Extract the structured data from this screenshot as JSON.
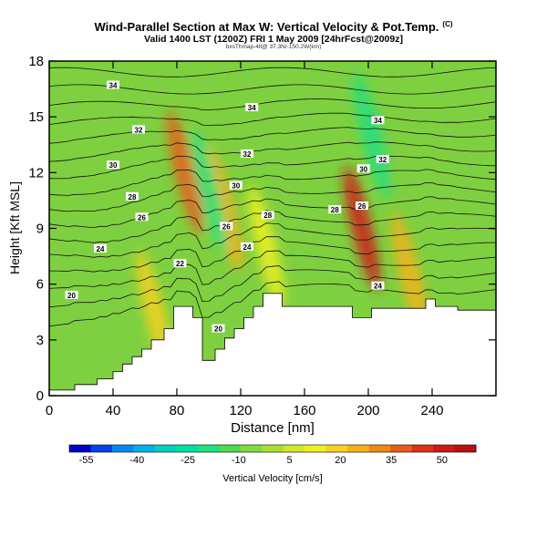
{
  "title": "Wind-Parallel Section at Max W: Vertical Velocity & Pot.Temp.",
  "title_suffix": "(C)",
  "subtitle": "Valid 1400 LST (1200Z) FRI 1 May 2009 [24hrFcst@2009z]",
  "credit": "bxsThmap-4lt@ 37.3N/-150.2W(km)",
  "chart_data": {
    "type": "heatmap",
    "xlabel": "Distance [nm]",
    "ylabel": "Height [Kft MSL]",
    "xlim": [
      0,
      280
    ],
    "ylim": [
      0,
      18
    ],
    "x_ticks": [
      "0",
      "40",
      "80",
      "120",
      "160",
      "200",
      "240"
    ],
    "y_ticks": [
      "0",
      "3",
      "6",
      "9",
      "12",
      "15",
      "18"
    ],
    "colorbar": {
      "label": "Vertical Velocity [cm/s]",
      "tick_labels": [
        "-55",
        "-40",
        "-25",
        "-10",
        "5",
        "20",
        "35",
        "50"
      ],
      "range": [
        -60,
        60
      ],
      "colors": [
        "#0000c8",
        "#0044e8",
        "#0088f0",
        "#00b0e8",
        "#00d0c0",
        "#00e0a0",
        "#20e080",
        "#50d850",
        "#80dc40",
        "#a8e030",
        "#d0e828",
        "#f0f020",
        "#f8d020",
        "#f8b018",
        "#f08818",
        "#e85c18",
        "#e03018",
        "#d01818",
        "#b81010"
      ]
    },
    "terrain_profile": {
      "x": [
        0,
        16,
        16,
        30,
        30,
        40,
        40,
        46,
        46,
        52,
        52,
        58,
        58,
        64,
        64,
        72,
        72,
        78,
        78,
        90,
        90,
        96,
        96,
        104,
        104,
        110,
        110,
        116,
        116,
        122,
        122,
        128,
        128,
        134,
        134,
        146,
        146,
        190,
        190,
        202,
        202,
        236,
        236,
        242,
        242,
        256,
        256,
        268,
        268,
        280
      ],
      "height": [
        0.3,
        0.3,
        0.6,
        0.6,
        0.9,
        0.9,
        1.3,
        1.3,
        1.7,
        1.7,
        2.1,
        2.1,
        2.5,
        2.5,
        3.0,
        3.0,
        3.6,
        3.6,
        4.8,
        4.8,
        4.2,
        4.2,
        1.9,
        1.9,
        2.5,
        2.5,
        3.1,
        3.1,
        3.6,
        3.6,
        4.2,
        4.2,
        4.8,
        4.8,
        5.5,
        5.5,
        4.8,
        4.8,
        4.2,
        4.2,
        4.7,
        4.7,
        5.2,
        5.2,
        4.8,
        4.8,
        4.6,
        4.6,
        4.6,
        4.6
      ]
    },
    "vertical_velocity_features": [
      {
        "kind": "updraft",
        "x": 85,
        "y": 12,
        "value": 35
      },
      {
        "kind": "updraft",
        "x": 110,
        "y": 10,
        "value": 25
      },
      {
        "kind": "downdraft",
        "x": 100,
        "y": 11,
        "value": -20
      },
      {
        "kind": "updraft",
        "x": 196,
        "y": 9,
        "value": 50
      },
      {
        "kind": "downdraft",
        "x": 202,
        "y": 14,
        "value": -20
      },
      {
        "kind": "updraft",
        "x": 226,
        "y": 6.5,
        "value": 25
      },
      {
        "kind": "updraft",
        "x": 66,
        "y": 4.5,
        "value": 20
      },
      {
        "kind": "updraft",
        "x": 136,
        "y": 8,
        "value": 15
      }
    ],
    "isentrope_labels": [
      {
        "text": "20",
        "x": 14,
        "y": 5.4
      },
      {
        "text": "24",
        "x": 32,
        "y": 7.9
      },
      {
        "text": "26",
        "x": 58,
        "y": 9.6
      },
      {
        "text": "28",
        "x": 52,
        "y": 10.7
      },
      {
        "text": "30",
        "x": 40,
        "y": 12.4
      },
      {
        "text": "32",
        "x": 56,
        "y": 14.3
      },
      {
        "text": "34",
        "x": 40,
        "y": 16.7
      },
      {
        "text": "22",
        "x": 82,
        "y": 7.1
      },
      {
        "text": "26",
        "x": 111,
        "y": 9.1
      },
      {
        "text": "24",
        "x": 124,
        "y": 8.0
      },
      {
        "text": "28",
        "x": 137,
        "y": 9.7
      },
      {
        "text": "30",
        "x": 117,
        "y": 11.3
      },
      {
        "text": "32",
        "x": 124,
        "y": 13.0
      },
      {
        "text": "34",
        "x": 127,
        "y": 15.5
      },
      {
        "text": "20",
        "x": 106,
        "y": 3.6
      },
      {
        "text": "28",
        "x": 179,
        "y": 10.0
      },
      {
        "text": "26",
        "x": 196,
        "y": 10.2
      },
      {
        "text": "30",
        "x": 197,
        "y": 12.2
      },
      {
        "text": "32",
        "x": 209,
        "y": 12.7
      },
      {
        "text": "34",
        "x": 206,
        "y": 14.8
      },
      {
        "text": "24",
        "x": 206,
        "y": 5.9
      }
    ]
  }
}
